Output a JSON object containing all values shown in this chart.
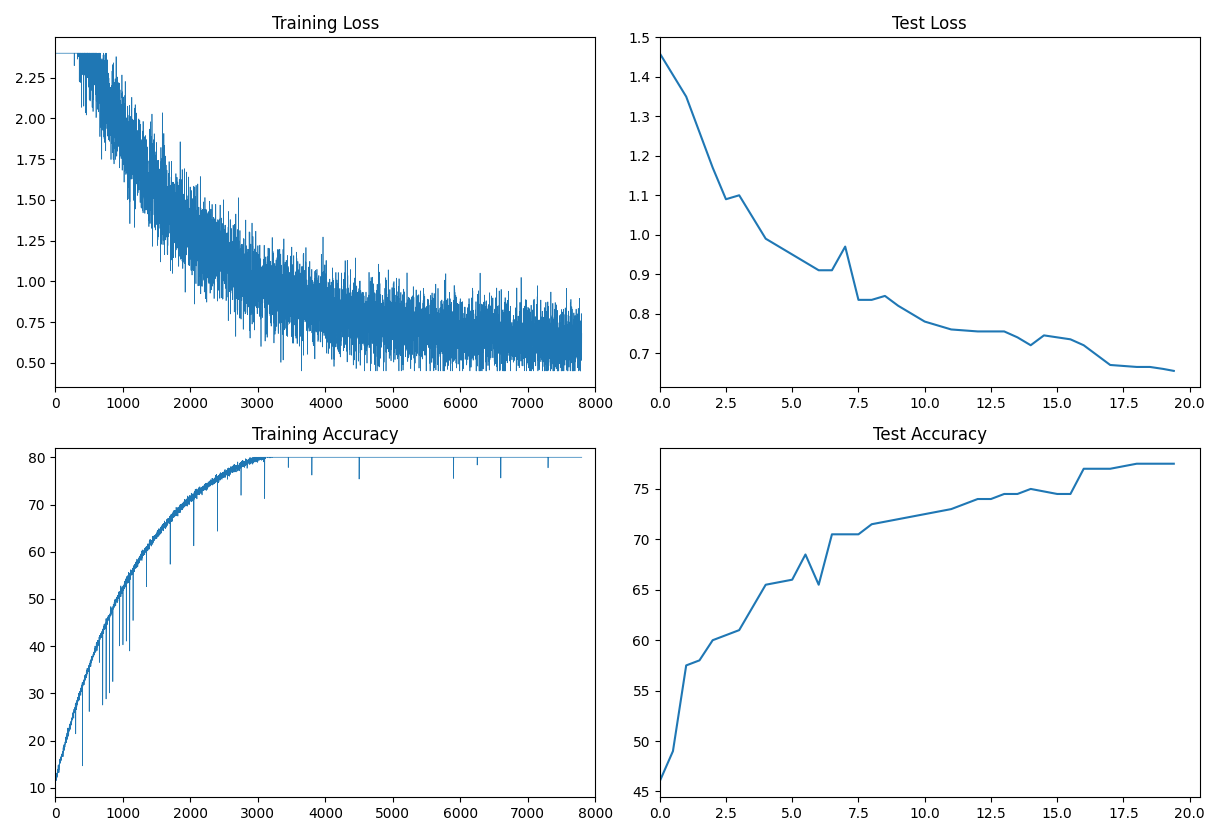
{
  "title_train_loss": "Training Loss",
  "title_test_loss": "Test Loss",
  "title_train_acc": "Training Accuracy",
  "title_test_acc": "Test Accuracy",
  "line_color": "#1f77b4",
  "bg_color": "white",
  "n_train_steps": 7800,
  "test_loss_x": [
    0.0,
    1.0,
    2.0,
    2.5,
    3.0,
    4.0,
    5.0,
    6.0,
    6.5,
    7.0,
    7.5,
    8.0,
    8.5,
    9.0,
    9.5,
    10.0,
    11.0,
    12.0,
    13.0,
    13.5,
    14.0,
    14.5,
    15.0,
    15.5,
    16.0,
    17.0,
    18.0,
    18.5,
    19.0,
    19.4
  ],
  "test_loss_y": [
    1.46,
    1.35,
    1.17,
    1.09,
    1.1,
    0.99,
    0.95,
    0.91,
    0.91,
    0.97,
    0.835,
    0.835,
    0.845,
    0.82,
    0.8,
    0.78,
    0.76,
    0.755,
    0.755,
    0.74,
    0.72,
    0.745,
    0.74,
    0.735,
    0.72,
    0.67,
    0.665,
    0.665,
    0.66,
    0.655
  ],
  "test_acc_x": [
    0.0,
    0.5,
    1.0,
    1.5,
    2.0,
    2.5,
    3.0,
    4.0,
    5.0,
    5.5,
    6.0,
    6.5,
    7.0,
    7.5,
    8.0,
    9.0,
    10.0,
    11.0,
    12.0,
    12.5,
    13.0,
    13.5,
    14.0,
    15.0,
    15.5,
    16.0,
    17.0,
    18.0,
    18.5,
    19.0,
    19.4
  ],
  "test_acc_y": [
    46.0,
    49.0,
    57.5,
    58.0,
    60.0,
    60.5,
    61.0,
    65.5,
    66.0,
    68.5,
    65.5,
    70.5,
    70.5,
    70.5,
    71.5,
    72.0,
    72.5,
    73.0,
    74.0,
    74.0,
    74.5,
    74.5,
    75.0,
    74.5,
    74.5,
    77.0,
    77.0,
    77.5,
    77.5,
    77.5,
    77.5
  ]
}
